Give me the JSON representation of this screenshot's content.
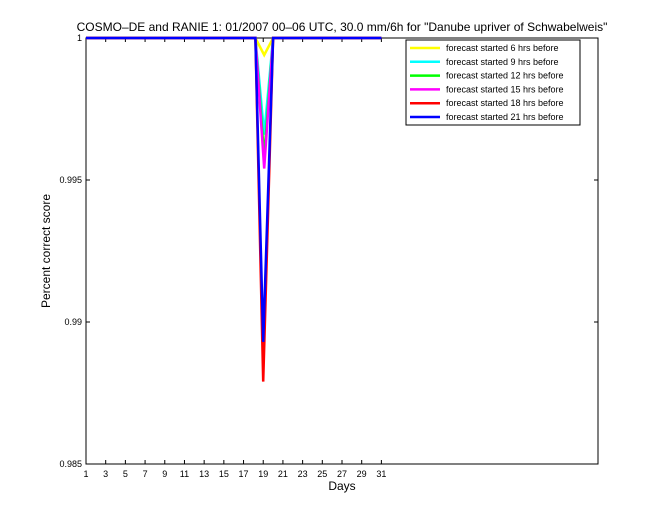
{
  "chart_data": {
    "type": "line",
    "title": "COSMO–DE and RANIE 1: 01/2007 00–06 UTC, 30.0 mm/6h for \"Danube upriver of Schwabelweis\"",
    "xlabel": "Days",
    "ylabel": "Percent correct score",
    "xlim": [
      1,
      53
    ],
    "ylim": [
      0.985,
      1.0
    ],
    "x_ticks": [
      1,
      3,
      5,
      7,
      9,
      11,
      13,
      15,
      17,
      19,
      21,
      23,
      25,
      27,
      29,
      31
    ],
    "y_ticks": [
      {
        "value": 0.985,
        "label": "0.985"
      },
      {
        "value": 0.99,
        "label": "0.99"
      },
      {
        "value": 0.995,
        "label": "0.995"
      },
      {
        "value": 1.0,
        "label": "1"
      }
    ],
    "grid": false,
    "legend_position": "top-right",
    "series": [
      {
        "name": "forecast started 6 hrs before",
        "color": "#ffff00",
        "x": [
          1,
          18.2,
          19.1,
          20.0,
          31
        ],
        "y": [
          1.0,
          1.0,
          0.9994,
          1.0,
          1.0
        ]
      },
      {
        "name": "forecast started 9 hrs before",
        "color": "#00ffff",
        "x": [
          1,
          18.2,
          19.1,
          20.0,
          31
        ],
        "y": [
          1.0,
          1.0,
          0.9966,
          1.0,
          1.0
        ]
      },
      {
        "name": "forecast started 12 hrs before",
        "color": "#00ff00",
        "x": [
          1,
          18.2,
          19.1,
          20.0,
          31
        ],
        "y": [
          1.0,
          1.0,
          0.9958,
          1.0,
          1.0
        ]
      },
      {
        "name": "forecast started 15 hrs before",
        "color": "#ff00ff",
        "x": [
          1,
          18.2,
          19.1,
          20.0,
          31
        ],
        "y": [
          1.0,
          1.0,
          0.9954,
          1.0,
          1.0
        ]
      },
      {
        "name": "forecast started 18 hrs before",
        "color": "#ff0000",
        "x": [
          1,
          18.2,
          19.0,
          20.0,
          31
        ],
        "y": [
          1.0,
          1.0,
          0.9879,
          1.0,
          1.0
        ]
      },
      {
        "name": "forecast started 21 hrs before",
        "color": "#0000ff",
        "x": [
          1,
          18.2,
          19.0,
          20.0,
          31
        ],
        "y": [
          1.0,
          1.0,
          0.9893,
          1.0,
          1.0
        ]
      }
    ]
  }
}
